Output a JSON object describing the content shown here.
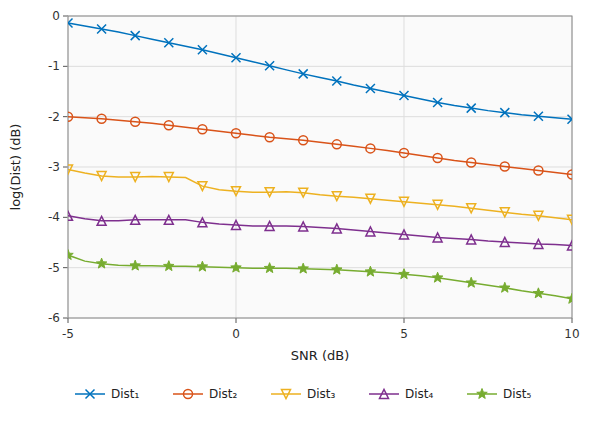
{
  "chart_data": {
    "type": "line",
    "xlabel": "SNR (dB)",
    "ylabel": "log(Dist) (dB)",
    "x": [
      -5,
      -4.5,
      -4,
      -3.5,
      -3,
      -2.5,
      -2,
      -1.5,
      -1,
      -0.5,
      0,
      0.5,
      1,
      1.5,
      2,
      2.5,
      3,
      3.5,
      4,
      4.5,
      5,
      5.5,
      6,
      6.5,
      7,
      7.5,
      8,
      8.5,
      9,
      9.5,
      10
    ],
    "xlim": [
      -5,
      10
    ],
    "ylim": [
      -6,
      0
    ],
    "xticks": [
      -5,
      0,
      5,
      10
    ],
    "yticks": [
      0,
      -1,
      -2,
      -3,
      -4,
      -5,
      -6
    ],
    "grid": true,
    "legend": "bottom",
    "series": [
      {
        "name": "Dist₁",
        "color": "#0072BD",
        "marker": "x",
        "values": [
          -0.14,
          -0.2,
          -0.26,
          -0.32,
          -0.39,
          -0.46,
          -0.53,
          -0.6,
          -0.67,
          -0.75,
          -0.83,
          -0.91,
          -0.99,
          -1.07,
          -1.15,
          -1.22,
          -1.29,
          -1.37,
          -1.44,
          -1.51,
          -1.58,
          -1.65,
          -1.72,
          -1.78,
          -1.83,
          -1.88,
          -1.92,
          -1.96,
          -1.99,
          -2.02,
          -2.05
        ]
      },
      {
        "name": "Dist₂",
        "color": "#D95319",
        "marker": "o",
        "values": [
          -2.0,
          -2.02,
          -2.04,
          -2.07,
          -2.1,
          -2.13,
          -2.17,
          -2.21,
          -2.25,
          -2.29,
          -2.33,
          -2.37,
          -2.41,
          -2.44,
          -2.47,
          -2.51,
          -2.55,
          -2.59,
          -2.63,
          -2.67,
          -2.72,
          -2.77,
          -2.82,
          -2.87,
          -2.91,
          -2.95,
          -2.99,
          -3.03,
          -3.07,
          -3.11,
          -3.15
        ]
      },
      {
        "name": "Dist₃",
        "color": "#EDB120",
        "marker": "v",
        "values": [
          -3.05,
          -3.12,
          -3.18,
          -3.2,
          -3.2,
          -3.19,
          -3.2,
          -3.21,
          -3.38,
          -3.45,
          -3.48,
          -3.5,
          -3.5,
          -3.49,
          -3.51,
          -3.55,
          -3.58,
          -3.6,
          -3.63,
          -3.66,
          -3.69,
          -3.72,
          -3.75,
          -3.78,
          -3.82,
          -3.86,
          -3.9,
          -3.94,
          -3.97,
          -4.01,
          -4.05
        ]
      },
      {
        "name": "Dist₄",
        "color": "#7E2F8E",
        "marker": "^",
        "values": [
          -3.97,
          -4.03,
          -4.07,
          -4.07,
          -4.05,
          -4.05,
          -4.05,
          -4.05,
          -4.1,
          -4.13,
          -4.15,
          -4.17,
          -4.17,
          -4.17,
          -4.18,
          -4.2,
          -4.22,
          -4.25,
          -4.28,
          -4.31,
          -4.34,
          -4.37,
          -4.4,
          -4.42,
          -4.44,
          -4.47,
          -4.49,
          -4.51,
          -4.53,
          -4.54,
          -4.56
        ]
      },
      {
        "name": "Dist₅",
        "color": "#77AC30",
        "marker": "*",
        "values": [
          -4.75,
          -4.87,
          -4.92,
          -4.95,
          -4.96,
          -4.96,
          -4.97,
          -4.97,
          -4.98,
          -4.99,
          -5.0,
          -5.01,
          -5.01,
          -5.01,
          -5.02,
          -5.03,
          -5.04,
          -5.06,
          -5.08,
          -5.1,
          -5.13,
          -5.16,
          -5.2,
          -5.25,
          -5.3,
          -5.35,
          -5.4,
          -5.46,
          -5.51,
          -5.56,
          -5.62
        ]
      }
    ]
  }
}
